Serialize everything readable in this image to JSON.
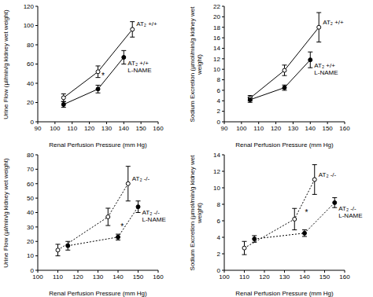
{
  "chart_data": [
    {
      "type": "line",
      "y_label": "Urine Flow (µl/min/g kidney wet weight)",
      "x_label": "Renal Perfusion Pressure (mm Hg)",
      "xlim": [
        90,
        160
      ],
      "xticks": [
        90,
        100,
        110,
        120,
        130,
        140,
        150,
        160
      ],
      "ylim": [
        0,
        120
      ],
      "yticks": [
        0,
        20,
        40,
        60,
        80,
        100,
        120
      ],
      "grid": false,
      "series": [
        {
          "name": "AT₂ +/+",
          "color": "#000000",
          "marker": "open_circle",
          "line_style": "solid",
          "x": [
            105,
            125,
            145
          ],
          "values": [
            25,
            52,
            96
          ],
          "errors": [
            4,
            6,
            8
          ]
        },
        {
          "name": "AT₂ +/+ L-NAME",
          "color": "#000000",
          "marker": "circle",
          "line_style": "solid",
          "x": [
            105,
            125,
            140
          ],
          "values": [
            18,
            34,
            67
          ],
          "errors": [
            3,
            4,
            7
          ]
        }
      ],
      "annotations": [
        {
          "text": "*",
          "x": 128,
          "y": 48
        }
      ]
    },
    {
      "type": "line",
      "y_label": "Sodium Excretion (µmol/min/g kidney wet weight)",
      "x_label": "Renal Perfusion Pressure (mm Hg)",
      "xlim": [
        90,
        160
      ],
      "xticks": [
        90,
        100,
        110,
        120,
        130,
        140,
        150,
        160
      ],
      "ylim": [
        0,
        22
      ],
      "yticks": [
        0,
        2,
        4,
        6,
        8,
        10,
        12,
        14,
        16,
        18,
        20,
        22
      ],
      "grid": false,
      "series": [
        {
          "name": "AT₂ +/+",
          "color": "#000000",
          "marker": "open_circle",
          "line_style": "solid",
          "x": [
            105,
            125,
            145
          ],
          "values": [
            4.5,
            9.8,
            18
          ],
          "errors": [
            0.5,
            1,
            2.8
          ]
        },
        {
          "name": "AT₂ +/+ L-NAME",
          "color": "#000000",
          "marker": "circle",
          "line_style": "solid",
          "x": [
            105,
            125,
            140
          ],
          "values": [
            4.2,
            6.5,
            11.8
          ],
          "errors": [
            0.5,
            0.5,
            1.5
          ]
        }
      ],
      "annotations": []
    },
    {
      "type": "line",
      "y_label": "Urine Flow (µl/min/g kidney wet weight)",
      "x_label": "Renal Perfusion Pressure (mm Hg)",
      "xlim": [
        100,
        160
      ],
      "xticks": [
        100,
        110,
        120,
        130,
        140,
        150,
        160
      ],
      "ylim": [
        0,
        80
      ],
      "yticks": [
        0,
        10,
        20,
        30,
        40,
        50,
        60,
        70,
        80
      ],
      "grid": false,
      "series": [
        {
          "name": "AT₂ -/-",
          "color": "#000000",
          "marker": "open_circle",
          "line_style": "dotted",
          "x": [
            110,
            135,
            145
          ],
          "values": [
            14,
            37,
            60
          ],
          "errors": [
            4,
            6,
            12
          ]
        },
        {
          "name": "AT₂ -/- L-NAME",
          "color": "#000000",
          "marker": "circle",
          "line_style": "dotted",
          "x": [
            115,
            140,
            150
          ],
          "values": [
            17,
            23,
            44
          ],
          "errors": [
            3,
            2,
            4
          ]
        }
      ],
      "annotations": [
        {
          "text": "*",
          "x": 142,
          "y": 30
        }
      ]
    },
    {
      "type": "line",
      "y_label": "Sodium Excretion (µmol/min/g kidney wet weight)",
      "x_label": "Renal Perfusion Pressure (mm Hg)",
      "xlim": [
        100,
        160
      ],
      "xticks": [
        100,
        110,
        120,
        130,
        140,
        150,
        160
      ],
      "ylim": [
        0,
        14
      ],
      "yticks": [
        0,
        2,
        4,
        6,
        8,
        10,
        12,
        14
      ],
      "grid": false,
      "series": [
        {
          "name": "AT₂ -/-",
          "color": "#000000",
          "marker": "open_circle",
          "line_style": "dotted",
          "x": [
            110,
            135,
            145
          ],
          "values": [
            2.7,
            6.2,
            11
          ],
          "errors": [
            0.8,
            1.3,
            1.8
          ]
        },
        {
          "name": "AT₂ -/- L-NAME",
          "color": "#000000",
          "marker": "circle",
          "line_style": "dotted",
          "x": [
            115,
            140,
            155
          ],
          "values": [
            3.8,
            4.5,
            8.2
          ],
          "errors": [
            0.4,
            0.4,
            0.6
          ]
        }
      ],
      "annotations": [
        {
          "text": "*",
          "x": 141,
          "y": 7
        }
      ]
    }
  ]
}
